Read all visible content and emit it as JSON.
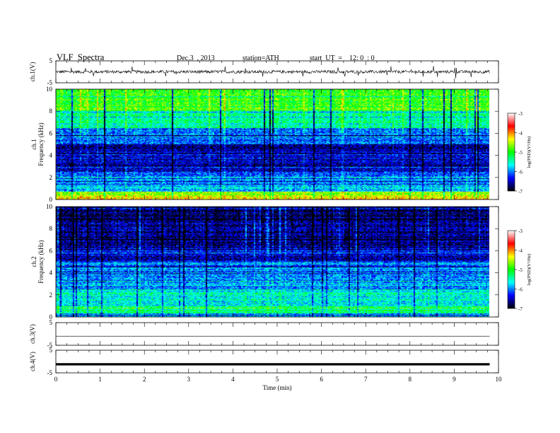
{
  "header": {
    "title": "VLF  Spectra",
    "date": "Dec.3  , 2013",
    "station": "station=ATH",
    "start": "start  UT  =    12: 0  : 0"
  },
  "colorbar": {
    "label": "log(PSD)(V²/Hz)",
    "ticks": [
      "-3",
      "-4",
      "-5",
      "-6",
      "-7"
    ],
    "colors": [
      "#ffffff",
      "#ff0000",
      "#ffff00",
      "#00ff00",
      "#00ffff",
      "#0000ff",
      "#000000"
    ]
  },
  "chart_data": [
    {
      "type": "line",
      "panel": "ch1-waveform",
      "ylabel": "ch.1(V)",
      "ylim": [
        -5,
        5
      ],
      "yticks": [
        "5",
        "-5"
      ],
      "x": [
        0,
        9.8
      ],
      "description_level": "noisy waveform centered near 0 V, amplitude about ±1 V with occasional spikes to about 2 V"
    },
    {
      "type": "heatmap",
      "panel": "ch1-spectrogram",
      "ylabel": "ch.1\nFrequency  (kHz)",
      "ylabel_lines": [
        "ch.1",
        "Frequency  (kHz)"
      ],
      "ylim": [
        0,
        10
      ],
      "yticks": [
        "0",
        "2",
        "4",
        "6",
        "8",
        "10"
      ],
      "zlim": [
        -7,
        -3
      ],
      "x_range": [
        0,
        9.8
      ],
      "bands": [
        {
          "f_min": 0.0,
          "f_max": 0.4,
          "logpsd": -4.2
        },
        {
          "f_min": 0.4,
          "f_max": 0.7,
          "logpsd": -4.6
        },
        {
          "f_min": 0.7,
          "f_max": 1.5,
          "logpsd": -5.8
        },
        {
          "f_min": 1.5,
          "f_max": 2.5,
          "logpsd": -6.0
        },
        {
          "f_min": 2.5,
          "f_max": 5.0,
          "logpsd": -6.6
        },
        {
          "f_min": 5.0,
          "f_max": 6.5,
          "logpsd": -6.1
        },
        {
          "f_min": 6.5,
          "f_max": 8.0,
          "logpsd": -5.4
        },
        {
          "f_min": 8.0,
          "f_max": 10.0,
          "logpsd": -4.9
        }
      ]
    },
    {
      "type": "heatmap",
      "panel": "ch2-spectrogram",
      "ylabel_lines": [
        "ch.2",
        "Frequency  (kHz)"
      ],
      "ylim": [
        0,
        10
      ],
      "yticks": [
        "0",
        "2",
        "4",
        "6",
        "8",
        "10"
      ],
      "zlim": [
        -7,
        -3
      ],
      "x_range": [
        0,
        9.8
      ],
      "bands": [
        {
          "f_min": 0.0,
          "f_max": 0.3,
          "logpsd": -5.9
        },
        {
          "f_min": 0.3,
          "f_max": 1.0,
          "logpsd": -5.3
        },
        {
          "f_min": 1.0,
          "f_max": 2.5,
          "logpsd": -5.6
        },
        {
          "f_min": 2.5,
          "f_max": 5.0,
          "logpsd": -6.0
        },
        {
          "f_min": 5.0,
          "f_max": 6.5,
          "logpsd": -6.5
        },
        {
          "f_min": 6.5,
          "f_max": 10.0,
          "logpsd": -6.7
        }
      ]
    },
    {
      "type": "line",
      "panel": "ch3-waveform",
      "ylabel": "ch.3(V)",
      "ylim": [
        -5,
        5
      ],
      "yticks": [
        "5",
        "-5"
      ],
      "x": [
        0,
        9.8
      ],
      "y": [
        -1,
        -1
      ]
    },
    {
      "type": "line",
      "panel": "ch4-waveform",
      "ylabel": "ch.4(V)",
      "ylim": [
        -5,
        5
      ],
      "yticks": [
        "5",
        "-5"
      ],
      "x": [
        0,
        9.8
      ],
      "y": [
        -1.2,
        -1.2
      ]
    }
  ],
  "xaxis": {
    "label": "Time  (min)",
    "ticks": [
      "0",
      "1",
      "2",
      "3",
      "4",
      "5",
      "6",
      "7",
      "8",
      "9",
      "10"
    ],
    "xlim": [
      0,
      10
    ]
  }
}
